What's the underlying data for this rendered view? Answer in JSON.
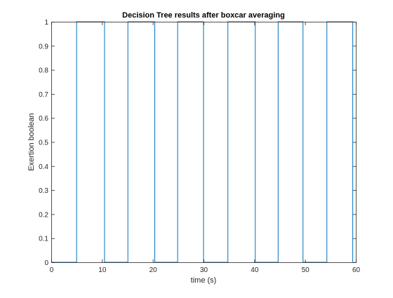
{
  "chart_data": {
    "type": "line",
    "title": "Decision Tree results after boxcar averaging",
    "xlabel": "time (s)",
    "ylabel": "Exertion boolean",
    "xlim": [
      0,
      60
    ],
    "ylim": [
      0,
      1
    ],
    "xticks": [
      0,
      10,
      20,
      30,
      40,
      50,
      60
    ],
    "yticks": [
      0,
      0.1,
      0.2,
      0.3,
      0.4,
      0.5,
      0.6,
      0.7,
      0.8,
      0.9,
      1
    ],
    "grid": false,
    "box": true,
    "colors": {
      "series": "#0072BD",
      "axes": "#262626",
      "background": "#ffffff"
    },
    "series": [
      {
        "x": [
          0,
          5.0,
          5.0,
          10.5,
          10.5,
          15.1,
          15.1,
          20.4,
          20.4,
          24.9,
          24.9,
          30.0,
          30.0,
          34.8,
          34.8,
          40.2,
          40.2,
          44.7,
          44.7,
          49.6,
          49.6,
          54.3,
          54.3,
          59.4,
          59.4
        ],
        "y": [
          0,
          0,
          1,
          1,
          0,
          0,
          1,
          1,
          0,
          0,
          1,
          1,
          0,
          0,
          1,
          1,
          0,
          0,
          1,
          1,
          0,
          0,
          1,
          1,
          0
        ]
      }
    ]
  }
}
